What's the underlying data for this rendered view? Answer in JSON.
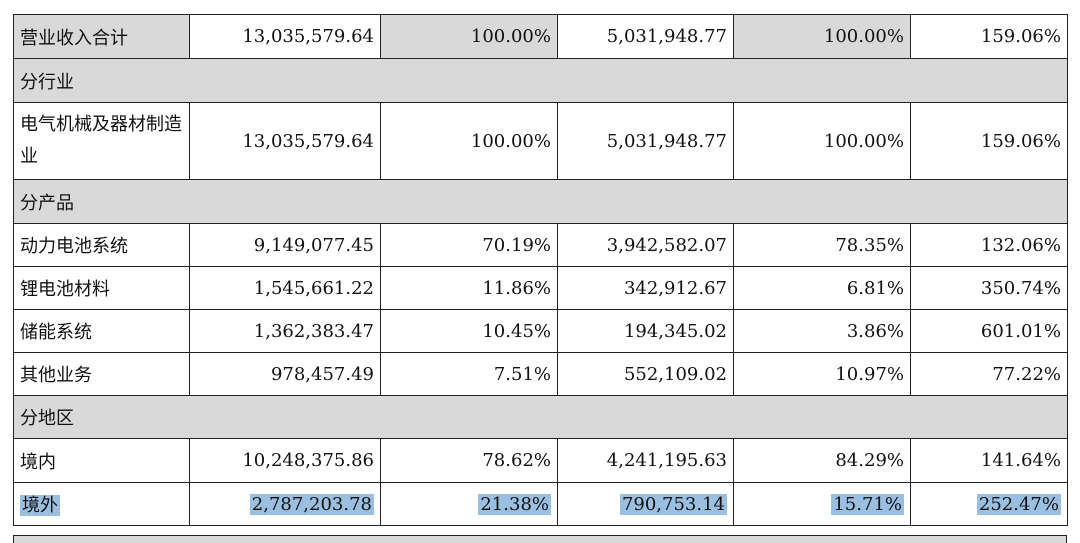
{
  "rows": {
    "total": {
      "label": "营业收入合计",
      "v1": "13,035,579.64",
      "v2": "100.00%",
      "v3": "5,031,948.77",
      "v4": "100.00%",
      "v5": "159.06%"
    },
    "sec_industry": "分行业",
    "electrical": {
      "label": "电气机械及器材制造业",
      "v1": "13,035,579.64",
      "v2": "100.00%",
      "v3": "5,031,948.77",
      "v4": "100.00%",
      "v5": "159.06%"
    },
    "sec_product": "分产品",
    "battery_sys": {
      "label": "动力电池系统",
      "v1": "9,149,077.45",
      "v2": "70.19%",
      "v3": "3,942,582.07",
      "v4": "78.35%",
      "v5": "132.06%"
    },
    "li_material": {
      "label": "锂电池材料",
      "v1": "1,545,661.22",
      "v2": "11.86%",
      "v3": "342,912.67",
      "v4": "6.81%",
      "v5": "350.74%"
    },
    "storage": {
      "label": "储能系统",
      "v1": "1,362,383.47",
      "v2": "10.45%",
      "v3": "194,345.02",
      "v4": "3.86%",
      "v5": "601.01%"
    },
    "other": {
      "label": "其他业务",
      "v1": "978,457.49",
      "v2": "7.51%",
      "v3": "552,109.02",
      "v4": "10.97%",
      "v5": "77.22%"
    },
    "sec_region": "分地区",
    "domestic": {
      "label": "境内",
      "v1": "10,248,375.86",
      "v2": "78.62%",
      "v3": "4,241,195.63",
      "v4": "84.29%",
      "v5": "141.64%"
    },
    "overseas": {
      "label": "境外",
      "v1": "2,787,203.78",
      "v2": "21.38%",
      "v3": "790,753.14",
      "v4": "15.71%",
      "v5": "252.47%"
    }
  },
  "colors": {
    "header_gray": "#d9d9d9",
    "selection": "#9bbfe0",
    "border": "#222222"
  }
}
